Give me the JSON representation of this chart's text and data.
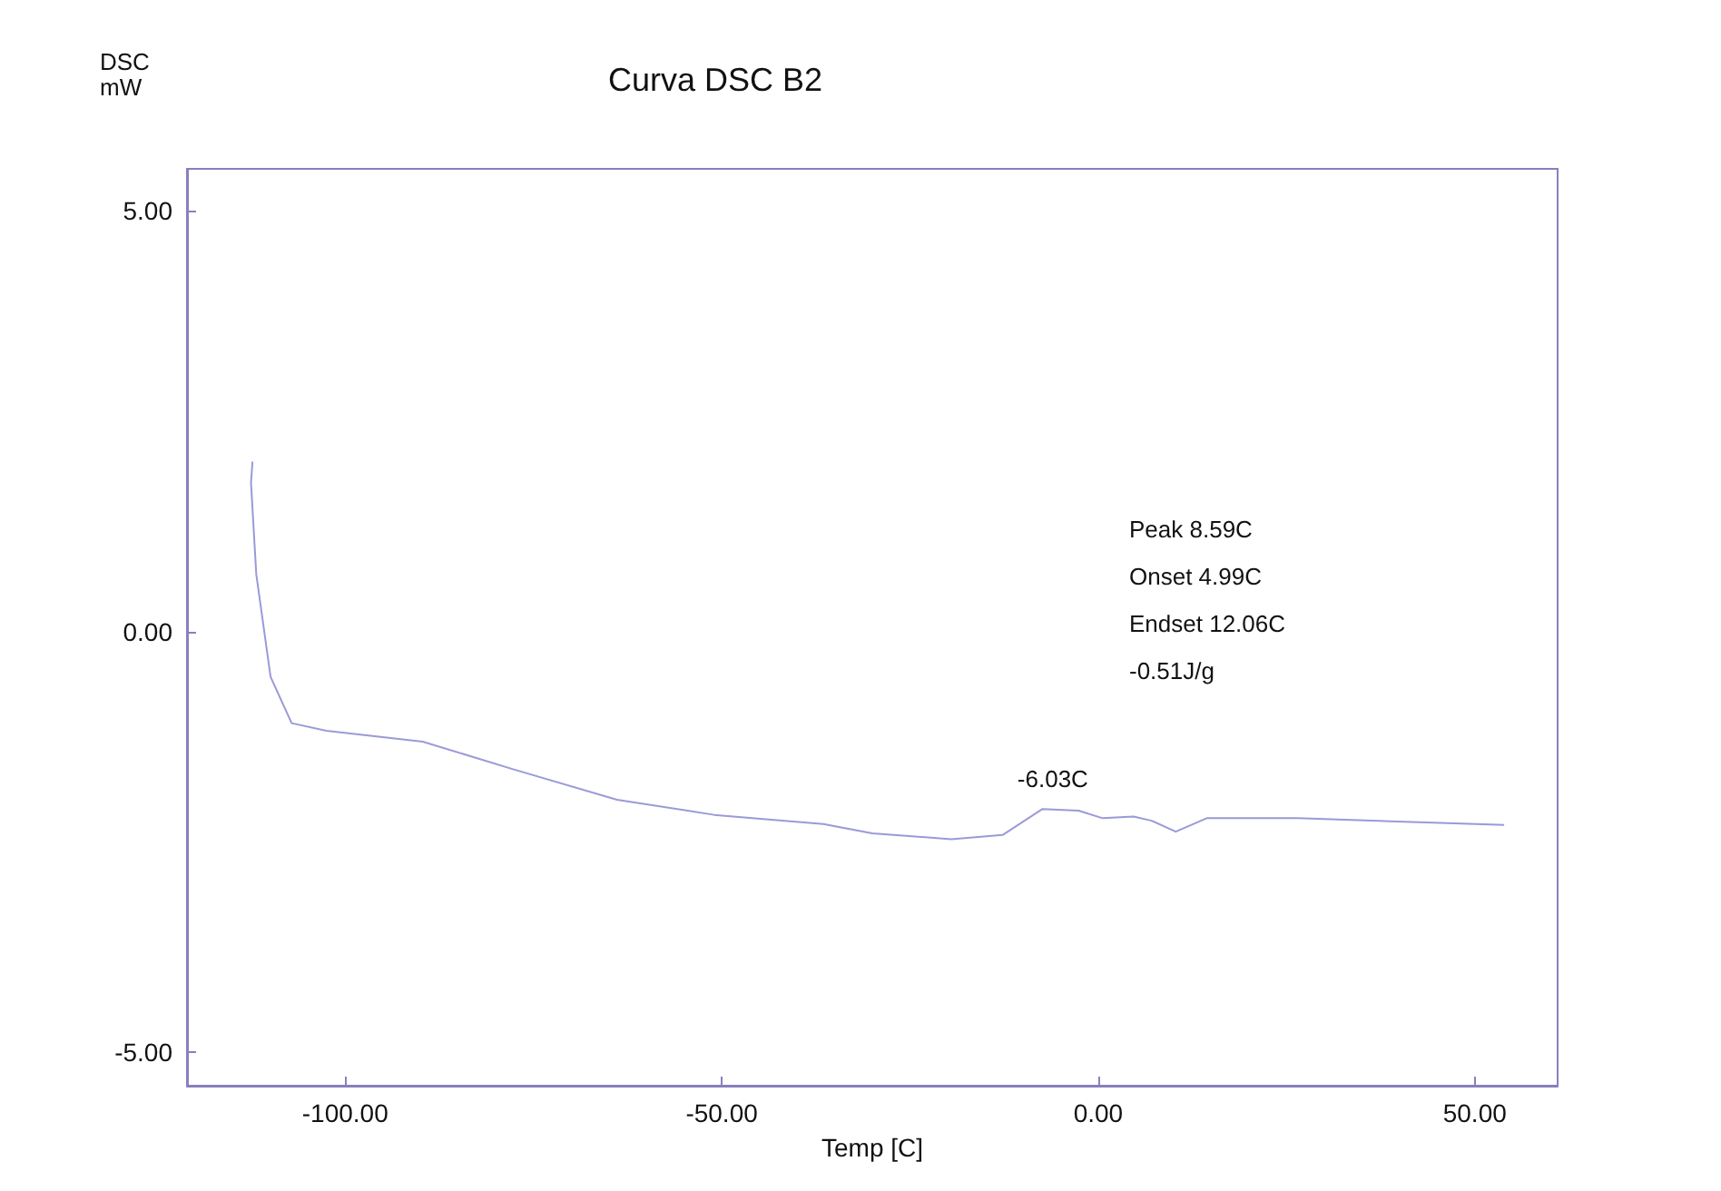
{
  "chart_data": {
    "type": "line",
    "title": "Curva DSC B2",
    "xlabel": "Temp [C]",
    "ylabel": "DSC\nmW",
    "x": [
      -112.3,
      -112.5,
      -111.8,
      -109.9,
      -107.1,
      -102.5,
      -89.7,
      -77.6,
      -63.9,
      -51,
      -36.5,
      -30,
      -19.5,
      -12.7,
      -7.4,
      -2.6,
      0.6,
      4.7,
      7.1,
      10.3,
      14.4,
      26.5,
      53.9
    ],
    "values": [
      2.02,
      1.77,
      0.68,
      -0.54,
      -1.09,
      -1.18,
      -1.31,
      -1.64,
      -2.0,
      -2.18,
      -2.29,
      -2.4,
      -2.47,
      -2.42,
      -2.11,
      -2.13,
      -2.22,
      -2.2,
      -2.25,
      -2.38,
      -2.22,
      -2.22,
      -2.3
    ],
    "color": "#9a9ad8",
    "xlim": [
      -121,
      61
    ],
    "xticks": [
      {
        "value": -100,
        "label": "-100.00"
      },
      {
        "value": -50,
        "label": "-50.00"
      },
      {
        "value": 0,
        "label": "0.00"
      },
      {
        "value": 50,
        "label": "50.00"
      }
    ],
    "ylim": [
      -5.4,
      5.5
    ],
    "yticks": [
      {
        "value": -5,
        "label": "-5.00"
      },
      {
        "value": 0,
        "label": "0.00"
      },
      {
        "value": 5,
        "label": "5.00"
      }
    ],
    "grid": false,
    "marker": "none",
    "line_style": "solid",
    "annotations": [
      {
        "text": "-6.03C",
        "x": -6.03,
        "y": -2.11
      },
      "Peak 8.59C",
      "Onset 4.99C",
      "Endset 12.06C",
      "-0.51J/g"
    ]
  }
}
